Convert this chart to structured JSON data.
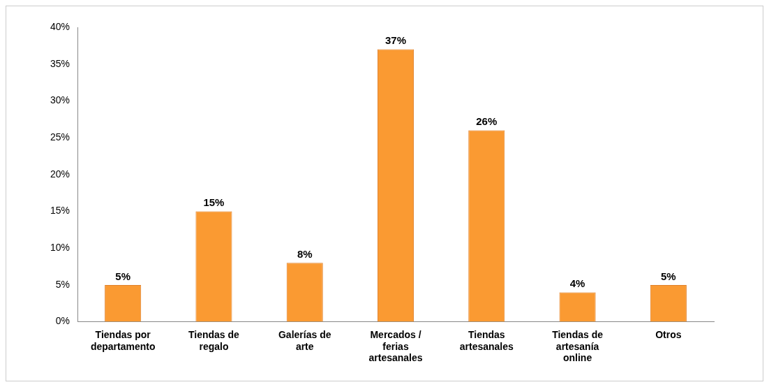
{
  "chart_data": {
    "type": "bar",
    "categories": [
      "Tiendas por departamento",
      "Tiendas de regalo",
      "Galerías de arte",
      "Mercados / ferias artesanales",
      "Tiendas artesanales",
      "Tiendas de artesanía online",
      "Otros"
    ],
    "values": [
      5,
      15,
      8,
      37,
      26,
      4,
      5
    ],
    "value_labels": [
      "5%",
      "15%",
      "8%",
      "37%",
      "26%",
      "4%",
      "5%"
    ],
    "color": "#fa9a32",
    "ylim": [
      0,
      40
    ],
    "yticks": [
      {
        "value": 0,
        "label": "0%"
      },
      {
        "value": 5,
        "label": "5%"
      },
      {
        "value": 10,
        "label": "10%"
      },
      {
        "value": 15,
        "label": "15%"
      },
      {
        "value": 20,
        "label": "20%"
      },
      {
        "value": 25,
        "label": "25%"
      },
      {
        "value": 30,
        "label": "30%"
      },
      {
        "value": 35,
        "label": "35%"
      },
      {
        "value": 40,
        "label": "40%"
      }
    ],
    "grid": false,
    "legend": false
  }
}
